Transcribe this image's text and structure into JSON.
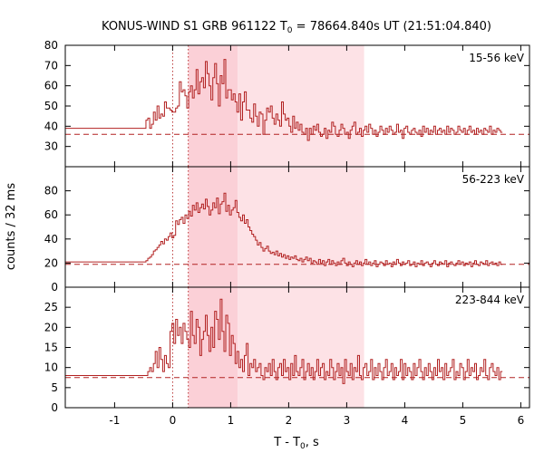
{
  "chart_data": {
    "type": "line",
    "title": "KONUS-WIND S1 GRB 961122 T",
    "title_sub": "0",
    "title_tail": " = 78664.840s UT (21:51:04.840)",
    "xlabel": "T - T",
    "xlabel_sub": "0",
    "xlabel_tail": ", s",
    "ylabel": "counts / 32 ms",
    "xlim": [
      -1.85,
      6.15
    ],
    "x_ticks": [
      -1,
      0,
      1,
      2,
      3,
      4,
      5,
      6
    ],
    "x_tick_labels": [
      "-1",
      "0",
      "1",
      "2",
      "3",
      "4",
      "5",
      "6"
    ],
    "line_color": "#b22222",
    "shade_color": "#fde2e6",
    "shade_dark_color": "#fbd0d7",
    "markers": [
      0,
      0.27
    ],
    "shaded_regions": [
      {
        "x0": 0.27,
        "x1": 1.12,
        "level": "dark"
      },
      {
        "x0": 1.12,
        "x1": 3.3,
        "level": "light"
      }
    ],
    "panels": [
      {
        "label": "15-56 keV",
        "ylim": [
          20,
          80
        ],
        "y_ticks": [
          30,
          40,
          50,
          60,
          70,
          80
        ],
        "background": 36,
        "pre_level": 39,
        "x_start": -0.46,
        "bin_width": 0.032,
        "values": [
          43,
          44,
          39,
          41,
          47,
          43,
          50,
          44,
          46,
          45,
          52,
          49,
          49,
          48,
          47,
          47,
          49,
          50,
          62,
          57,
          58,
          55,
          49,
          57,
          60,
          54,
          58,
          68,
          56,
          62,
          64,
          59,
          72,
          66,
          60,
          53,
          64,
          71,
          61,
          50,
          65,
          61,
          73,
          54,
          58,
          58,
          53,
          56,
          52,
          47,
          56,
          43,
          52,
          57,
          48,
          48,
          44,
          42,
          51,
          45,
          40,
          47,
          46,
          36,
          43,
          49,
          47,
          50,
          44,
          41,
          46,
          43,
          40,
          52,
          46,
          43,
          44,
          40,
          37,
          45,
          39,
          42,
          38,
          41,
          37,
          36,
          39,
          33,
          39,
          36,
          40,
          38,
          41,
          37,
          35,
          36,
          39,
          34,
          38,
          37,
          42,
          40,
          36,
          35,
          38,
          41,
          39,
          36,
          37,
          34,
          38,
          40,
          42,
          36,
          37,
          39,
          35,
          38,
          40,
          37,
          41,
          39,
          36,
          38,
          35,
          37,
          40,
          38,
          36,
          39,
          37,
          40,
          38,
          36,
          37,
          41,
          37,
          38,
          34,
          39,
          40,
          37,
          36,
          38,
          39,
          37,
          36,
          38,
          35,
          40,
          37,
          39,
          36,
          38,
          37,
          40,
          36,
          38,
          39,
          37,
          38,
          36,
          40,
          37,
          39,
          38,
          36,
          37,
          40,
          38,
          37,
          39,
          36,
          38,
          40,
          37,
          38,
          36,
          39,
          37,
          38,
          36,
          39,
          38,
          37,
          40,
          36,
          38,
          37,
          39,
          38,
          37
        ]
      },
      {
        "label": "56-223 keV",
        "ylim": [
          0,
          100
        ],
        "y_ticks": [
          0,
          20,
          40,
          60,
          80
        ],
        "background": 19,
        "pre_level": 21,
        "x_start": -0.46,
        "bin_width": 0.032,
        "values": [
          22,
          24,
          25,
          27,
          30,
          31,
          33,
          35,
          38,
          36,
          40,
          39,
          42,
          45,
          41,
          43,
          55,
          52,
          56,
          58,
          53,
          60,
          57,
          63,
          59,
          68,
          64,
          70,
          62,
          66,
          69,
          65,
          73,
          67,
          60,
          64,
          70,
          66,
          74,
          61,
          69,
          71,
          78,
          63,
          68,
          60,
          64,
          66,
          72,
          62,
          58,
          55,
          60,
          53,
          56,
          50,
          47,
          44,
          42,
          39,
          35,
          37,
          33,
          30,
          32,
          34,
          30,
          28,
          29,
          27,
          30,
          26,
          28,
          25,
          27,
          24,
          26,
          23,
          25,
          24,
          26,
          23,
          22,
          24,
          21,
          23,
          25,
          22,
          24,
          20,
          22,
          21,
          19,
          23,
          20,
          22,
          18,
          21,
          23,
          19,
          22,
          20,
          18,
          21,
          19,
          22,
          24,
          20,
          18,
          21,
          19,
          17,
          20,
          22,
          19,
          21,
          18,
          20,
          23,
          19,
          21,
          18,
          20,
          22,
          17,
          19,
          21,
          20,
          18,
          22,
          19,
          20,
          17,
          21,
          19,
          23,
          20,
          18,
          21,
          19,
          20,
          22,
          18,
          19,
          21,
          17,
          20,
          19,
          22,
          18,
          20,
          21,
          19,
          17,
          20,
          22,
          19,
          18,
          21,
          20,
          19,
          22,
          17,
          20,
          21,
          19,
          18,
          20,
          22,
          19,
          21,
          18,
          20,
          19,
          21,
          17,
          20,
          22,
          19,
          18,
          21,
          20,
          19,
          22,
          18,
          20,
          21,
          19,
          20,
          18,
          21,
          19
        ]
      },
      {
        "label": "223-844 keV",
        "ylim": [
          0,
          30
        ],
        "y_ticks": [
          0,
          5,
          10,
          15,
          20,
          25
        ],
        "background": 7.5,
        "pre_level": 8,
        "x_start": -0.46,
        "bin_width": 0.032,
        "values": [
          8,
          9,
          10,
          9,
          11,
          14,
          10,
          15,
          12,
          9,
          13,
          11,
          10,
          19,
          21,
          16,
          22,
          18,
          20,
          16,
          21,
          19,
          17,
          15,
          24,
          18,
          16,
          22,
          20,
          13,
          17,
          19,
          23,
          18,
          14,
          20,
          15,
          24,
          22,
          17,
          27,
          19,
          14,
          23,
          21,
          13,
          18,
          16,
          11,
          14,
          10,
          12,
          9,
          13,
          16,
          8,
          11,
          10,
          12,
          9,
          10,
          11,
          8,
          7,
          10,
          9,
          11,
          8,
          12,
          9,
          7,
          10,
          11,
          8,
          12,
          9,
          10,
          7,
          11,
          8,
          13,
          9,
          8,
          10,
          12,
          7,
          9,
          11,
          8,
          10,
          7,
          9,
          12,
          8,
          10,
          11,
          7,
          9,
          8,
          12,
          10,
          7,
          9,
          11,
          8,
          10,
          6,
          12,
          9,
          8,
          11,
          7,
          10,
          9,
          13,
          8,
          7,
          10,
          11,
          8,
          9,
          12,
          7,
          10,
          8,
          11,
          9,
          7,
          10,
          12,
          8,
          9,
          11,
          7,
          10,
          8,
          9,
          12,
          7,
          11,
          8,
          10,
          9,
          7,
          11,
          8,
          10,
          12,
          9,
          7,
          10,
          8,
          11,
          9,
          7,
          10,
          8,
          12,
          9,
          10,
          7,
          11,
          8,
          9,
          10,
          12,
          7,
          9,
          8,
          11,
          10,
          7,
          9,
          12,
          8,
          10,
          9,
          11,
          7,
          8,
          10,
          9,
          12,
          8,
          7,
          10,
          11,
          9,
          8,
          10,
          7,
          9
        ]
      }
    ]
  }
}
